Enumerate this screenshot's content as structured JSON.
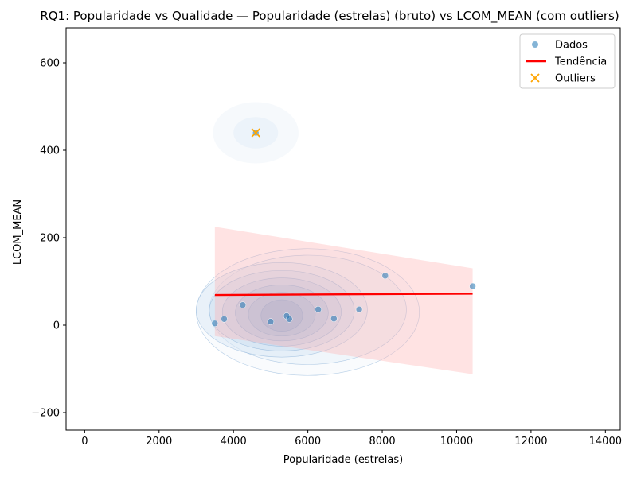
{
  "chart_data": {
    "type": "scatter",
    "title": "RQ1: Popularidade vs Qualidade — Popularidade (estrelas) (bruto) vs LCOM_MEAN (com outliers)",
    "xlabel": "Popularidade (estrelas)",
    "ylabel": "LCOM_MEAN",
    "xlim": [
      -500,
      14400
    ],
    "ylim": [
      -240,
      680
    ],
    "xticks": [
      0,
      2000,
      4000,
      6000,
      8000,
      10000,
      12000,
      14000
    ],
    "xtick_labels": [
      "0",
      "2000",
      "4000",
      "6000",
      "8000",
      "10000",
      "12000",
      "14000"
    ],
    "yticks": [
      -200,
      0,
      200,
      400,
      600
    ],
    "ytick_labels": [
      "−200",
      "0",
      "200",
      "400",
      "600"
    ],
    "grid": false,
    "legend_position": "top-right",
    "legend": [
      {
        "label": "Dados",
        "color": "#1f77b4",
        "marker": "circle"
      },
      {
        "label": "Tendência",
        "color": "#ff0000",
        "marker": "line"
      },
      {
        "label": "Outliers",
        "color": "#ffa500",
        "marker": "x"
      }
    ],
    "series": [
      {
        "name": "Dados",
        "color": "#1f77b4",
        "x": [
          3500,
          3750,
          4250,
          5000,
          5430,
          5500,
          6280,
          6700,
          7380,
          8080,
          10430,
          4600
        ],
        "y": [
          4,
          14,
          46,
          8,
          21,
          14,
          36,
          15,
          36,
          113,
          89,
          440
        ]
      },
      {
        "name": "Tendência",
        "color": "#ff0000",
        "x": [
          3500,
          10430
        ],
        "y": [
          69,
          72
        ],
        "ci_upper": [
          225,
          130
        ],
        "ci_lower": [
          -25,
          -112
        ]
      },
      {
        "name": "Outliers",
        "color": "#ffa500",
        "x": [
          4600
        ],
        "y": [
          440
        ]
      }
    ]
  }
}
